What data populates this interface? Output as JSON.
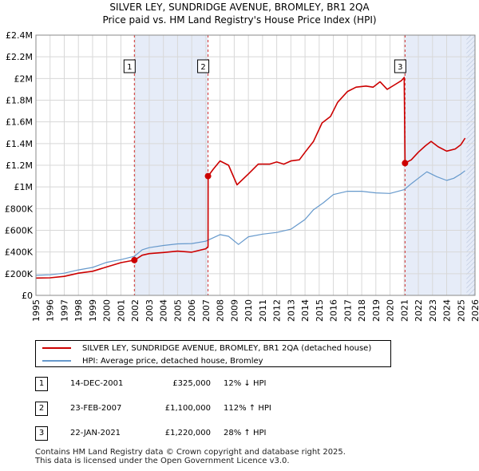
{
  "title_line1": "SILVER LEY, SUNDRIDGE AVENUE, BROMLEY, BR1 2QA",
  "title_line2": "Price paid vs. HM Land Registry's House Price Index (HPI)",
  "colors": {
    "property": "#cc0000",
    "hpi": "#6699cc",
    "shade": "#e6ecf8",
    "marker_line": "#cc0000"
  },
  "chart_data": {
    "type": "line",
    "xlim": [
      1995,
      2026
    ],
    "ylim": [
      0,
      2400000
    ],
    "x_ticks": [
      "1995",
      "1996",
      "1997",
      "1998",
      "1999",
      "2000",
      "2001",
      "2002",
      "2003",
      "2004",
      "2005",
      "2006",
      "2007",
      "2008",
      "2009",
      "2010",
      "2011",
      "2012",
      "2013",
      "2014",
      "2015",
      "2016",
      "2017",
      "2018",
      "2019",
      "2020",
      "2021",
      "2022",
      "2023",
      "2024",
      "2025",
      "2026"
    ],
    "y_ticks": [
      {
        "value": 0,
        "label": "£0"
      },
      {
        "value": 200000,
        "label": "£200K"
      },
      {
        "value": 400000,
        "label": "£400K"
      },
      {
        "value": 600000,
        "label": "£600K"
      },
      {
        "value": 800000,
        "label": "£800K"
      },
      {
        "value": 1000000,
        "label": "£1M"
      },
      {
        "value": 1200000,
        "label": "£1.2M"
      },
      {
        "value": 1400000,
        "label": "£1.4M"
      },
      {
        "value": 1600000,
        "label": "£1.6M"
      },
      {
        "value": 1800000,
        "label": "£1.8M"
      },
      {
        "value": 2000000,
        "label": "£2M"
      },
      {
        "value": 2200000,
        "label": "£2.2M"
      },
      {
        "value": 2400000,
        "label": "£2.4M"
      }
    ],
    "shaded_ranges": [
      [
        2001.95,
        2007.15
      ],
      [
        2021.06,
        2026
      ]
    ],
    "hatched_range": [
      2025.4,
      2026
    ],
    "series": [
      {
        "name": "SILVER LEY, SUNDRIDGE AVENUE, BROMLEY, BR1 2QA (detached house)",
        "color": "#cc0000",
        "points": [
          [
            1995,
            160000
          ],
          [
            1996,
            162000
          ],
          [
            1997,
            175000
          ],
          [
            1998,
            205000
          ],
          [
            1999,
            222000
          ],
          [
            2000,
            262000
          ],
          [
            2001,
            302000
          ],
          [
            2001.95,
            325000
          ],
          [
            2002.5,
            370000
          ],
          [
            2003,
            385000
          ],
          [
            2004,
            395000
          ],
          [
            2005,
            408000
          ],
          [
            2006,
            398000
          ],
          [
            2007,
            430000
          ],
          [
            2007.15,
            450000
          ],
          [
            2007.16,
            1100000
          ],
          [
            2007.5,
            1160000
          ],
          [
            2008,
            1240000
          ],
          [
            2008.6,
            1200000
          ],
          [
            2009.2,
            1020000
          ],
          [
            2010,
            1120000
          ],
          [
            2010.7,
            1210000
          ],
          [
            2011.5,
            1210000
          ],
          [
            2012,
            1230000
          ],
          [
            2012.5,
            1210000
          ],
          [
            2013,
            1240000
          ],
          [
            2013.6,
            1250000
          ],
          [
            2014,
            1320000
          ],
          [
            2014.6,
            1420000
          ],
          [
            2015.2,
            1590000
          ],
          [
            2015.8,
            1650000
          ],
          [
            2016.3,
            1780000
          ],
          [
            2017,
            1880000
          ],
          [
            2017.6,
            1920000
          ],
          [
            2018.3,
            1930000
          ],
          [
            2018.8,
            1920000
          ],
          [
            2019.3,
            1970000
          ],
          [
            2019.8,
            1900000
          ],
          [
            2020.3,
            1940000
          ],
          [
            2020.8,
            1980000
          ],
          [
            2021,
            2010000
          ],
          [
            2021.06,
            1220000
          ],
          [
            2021.5,
            1250000
          ],
          [
            2022,
            1320000
          ],
          [
            2022.5,
            1380000
          ],
          [
            2022.9,
            1420000
          ],
          [
            2023.4,
            1370000
          ],
          [
            2024,
            1330000
          ],
          [
            2024.6,
            1350000
          ],
          [
            2025,
            1390000
          ],
          [
            2025.3,
            1450000
          ]
        ]
      },
      {
        "name": "HPI: Average price, detached house, Bromley",
        "color": "#6699cc",
        "points": [
          [
            1995,
            185000
          ],
          [
            1996,
            190000
          ],
          [
            1997,
            205000
          ],
          [
            1998,
            235000
          ],
          [
            1999,
            258000
          ],
          [
            2000,
            305000
          ],
          [
            2001,
            330000
          ],
          [
            2001.95,
            360000
          ],
          [
            2002.5,
            420000
          ],
          [
            2003,
            440000
          ],
          [
            2004,
            460000
          ],
          [
            2005,
            475000
          ],
          [
            2006,
            478000
          ],
          [
            2007,
            500000
          ],
          [
            2008,
            560000
          ],
          [
            2008.6,
            545000
          ],
          [
            2009.3,
            470000
          ],
          [
            2010,
            540000
          ],
          [
            2011,
            565000
          ],
          [
            2012,
            580000
          ],
          [
            2013,
            610000
          ],
          [
            2014,
            700000
          ],
          [
            2014.6,
            790000
          ],
          [
            2015.3,
            855000
          ],
          [
            2016,
            930000
          ],
          [
            2017,
            960000
          ],
          [
            2018,
            960000
          ],
          [
            2019,
            945000
          ],
          [
            2020,
            940000
          ],
          [
            2021,
            975000
          ],
          [
            2021.5,
            1030000
          ],
          [
            2022,
            1080000
          ],
          [
            2022.6,
            1140000
          ],
          [
            2023.3,
            1095000
          ],
          [
            2024,
            1060000
          ],
          [
            2024.5,
            1080000
          ],
          [
            2025,
            1120000
          ],
          [
            2025.3,
            1150000
          ]
        ]
      }
    ],
    "sale_markers": [
      {
        "label": "1",
        "x": 2001.95,
        "y": 325000
      },
      {
        "label": "2",
        "x": 2007.15,
        "y": 1100000
      },
      {
        "label": "3",
        "x": 2021.06,
        "y": 1220000
      }
    ]
  },
  "legend": [
    {
      "label": "SILVER LEY, SUNDRIDGE AVENUE, BROMLEY, BR1 2QA (detached house)",
      "color": "#cc0000"
    },
    {
      "label": "HPI: Average price, detached house, Bromley",
      "color": "#6699cc"
    }
  ],
  "sales": [
    {
      "num": "1",
      "date": "14-DEC-2001",
      "price": "£325,000",
      "hpi": "12% ↓ HPI"
    },
    {
      "num": "2",
      "date": "23-FEB-2007",
      "price": "£1,100,000",
      "hpi": "112% ↑ HPI"
    },
    {
      "num": "3",
      "date": "22-JAN-2021",
      "price": "£1,220,000",
      "hpi": "28% ↑ HPI"
    }
  ],
  "footer_line1": "Contains HM Land Registry data © Crown copyright and database right 2025.",
  "footer_line2": "This data is licensed under the Open Government Licence v3.0."
}
